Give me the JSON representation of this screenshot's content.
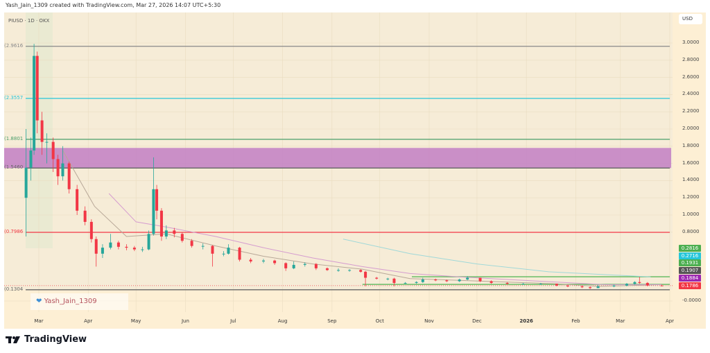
{
  "caption": "Yash_Jain_1309 created with TradingView.com, Mar 27, 2026 14:07 UTC+5:30",
  "symbol_line": "PIUSD · 1D · OKX",
  "currency_button": "USD",
  "watermark": "Yash_Jain_1309",
  "watermark_icon": "heart-icon",
  "brand": "TradingView",
  "colors": {
    "up": "#26a69a",
    "down": "#f23645",
    "zone": "#c27fc4",
    "background": "#fdefd4"
  },
  "level_labels": [
    {
      "text": "2.9616)",
      "price": 2.9616,
      "color": "#888888"
    },
    {
      "text": "2.3557)",
      "price": 2.3557,
      "color": "#26c6da"
    },
    {
      "text": "1.8801)",
      "price": 1.8801,
      "color": "#4a9e6a"
    },
    {
      "text": "1.5460)",
      "price": 1.546,
      "color": "#666666"
    },
    {
      "text": "0.7986)",
      "price": 0.7986,
      "color": "#f23645"
    },
    {
      "text": "0.1304)",
      "price": 0.1304,
      "color": "#666666"
    }
  ],
  "price_badges": [
    {
      "text": "0.2816",
      "color": "#4caf50"
    },
    {
      "text": "0.2716",
      "color": "#26c6da"
    },
    {
      "text": "0.1931",
      "color": "#4caf50"
    },
    {
      "text": "0.1907",
      "color": "#555555"
    },
    {
      "text": "0.1884",
      "color": "#9c27b0"
    },
    {
      "text": "0.1786",
      "color": "#f23645"
    }
  ],
  "chart_data": {
    "type": "candlestick",
    "xlabels": [
      "Mar",
      "Apr",
      "May",
      "Jun",
      "Jul",
      "Aug",
      "Sep",
      "Oct",
      "Nov",
      "Dec",
      "2026",
      "Feb",
      "Mar",
      "Apr"
    ],
    "xlabel_dates": [
      "2025-03-01",
      "2025-04-01",
      "2025-05-01",
      "2025-06-01",
      "2025-07-01",
      "2025-08-01",
      "2025-09-01",
      "2025-10-01",
      "2025-11-01",
      "2025-12-01",
      "2026-01-01",
      "2026-02-01",
      "2026-03-01",
      "2026-04-01"
    ],
    "yticks": [
      "3.0000",
      "2.8000",
      "2.6000",
      "2.4000",
      "2.2000",
      "2.0000",
      "1.8000",
      "1.6000",
      "1.4000",
      "1.2000",
      "1.0000",
      "0.8000",
      "-0.0000"
    ],
    "ytick_values": [
      3.0,
      2.8,
      2.6,
      2.4,
      2.2,
      2.0,
      1.8,
      1.6,
      1.4,
      1.2,
      1.0,
      0.8,
      0.0
    ],
    "ylim": [
      -0.05,
      3.1
    ],
    "horizontal_levels": [
      2.9616,
      2.3557,
      1.8801,
      1.546,
      0.7986,
      0.1304
    ],
    "zone": {
      "low": 1.546,
      "high": 1.78
    },
    "support_lines": [
      {
        "price": 0.2816,
        "from": "2025-11-01"
      },
      {
        "price": 0.1931,
        "from": "2025-10-01"
      }
    ],
    "last_price": 0.1786,
    "ohlc": [
      [
        "2025-02-21",
        1.2,
        2.0,
        0.75,
        1.55
      ],
      [
        "2025-02-24",
        1.55,
        1.9,
        1.4,
        1.75
      ],
      [
        "2025-02-26",
        1.75,
        2.99,
        1.7,
        2.85
      ],
      [
        "2025-02-28",
        2.85,
        2.9,
        1.95,
        2.1
      ],
      [
        "2025-03-03",
        2.1,
        2.2,
        1.7,
        1.85
      ],
      [
        "2025-03-06",
        1.85,
        1.95,
        1.6,
        1.85
      ],
      [
        "2025-03-10",
        1.85,
        1.9,
        1.5,
        1.65
      ],
      [
        "2025-03-13",
        1.65,
        1.7,
        1.35,
        1.45
      ],
      [
        "2025-03-16",
        1.45,
        1.8,
        1.4,
        1.6
      ],
      [
        "2025-03-20",
        1.6,
        1.62,
        1.25,
        1.3
      ],
      [
        "2025-03-25",
        1.3,
        1.35,
        1.0,
        1.05
      ],
      [
        "2025-03-30",
        1.05,
        1.1,
        0.88,
        0.92
      ],
      [
        "2025-04-03",
        0.92,
        0.95,
        0.68,
        0.72
      ],
      [
        "2025-04-06",
        0.72,
        0.75,
        0.4,
        0.55
      ],
      [
        "2025-04-10",
        0.55,
        0.66,
        0.5,
        0.62
      ],
      [
        "2025-04-15",
        0.62,
        0.78,
        0.6,
        0.68
      ],
      [
        "2025-04-20",
        0.68,
        0.7,
        0.6,
        0.63
      ],
      [
        "2025-04-25",
        0.63,
        0.66,
        0.59,
        0.62
      ],
      [
        "2025-04-30",
        0.62,
        0.64,
        0.58,
        0.6
      ],
      [
        "2025-05-05",
        0.6,
        0.63,
        0.57,
        0.6
      ],
      [
        "2025-05-09",
        0.6,
        0.82,
        0.59,
        0.78
      ],
      [
        "2025-05-12",
        0.78,
        1.67,
        0.76,
        1.3
      ],
      [
        "2025-05-14",
        1.3,
        1.35,
        0.95,
        1.05
      ],
      [
        "2025-05-17",
        1.05,
        1.08,
        0.7,
        0.75
      ],
      [
        "2025-05-20",
        0.75,
        0.88,
        0.72,
        0.82
      ],
      [
        "2025-05-25",
        0.82,
        0.85,
        0.74,
        0.78
      ],
      [
        "2025-05-30",
        0.78,
        0.8,
        0.68,
        0.7
      ],
      [
        "2025-06-05",
        0.7,
        0.72,
        0.62,
        0.64
      ],
      [
        "2025-06-12",
        0.64,
        0.67,
        0.6,
        0.64
      ],
      [
        "2025-06-18",
        0.64,
        0.65,
        0.4,
        0.55
      ],
      [
        "2025-06-25",
        0.55,
        0.58,
        0.52,
        0.55
      ],
      [
        "2025-06-28",
        0.55,
        0.66,
        0.54,
        0.62
      ],
      [
        "2025-07-05",
        0.62,
        0.63,
        0.46,
        0.48
      ],
      [
        "2025-07-12",
        0.48,
        0.5,
        0.44,
        0.46
      ],
      [
        "2025-07-20",
        0.46,
        0.49,
        0.44,
        0.47
      ],
      [
        "2025-07-27",
        0.47,
        0.48,
        0.42,
        0.44
      ],
      [
        "2025-08-03",
        0.44,
        0.45,
        0.35,
        0.38
      ],
      [
        "2025-08-08",
        0.38,
        0.46,
        0.37,
        0.42
      ],
      [
        "2025-08-15",
        0.42,
        0.45,
        0.4,
        0.43
      ],
      [
        "2025-08-22",
        0.43,
        0.44,
        0.36,
        0.38
      ],
      [
        "2025-08-29",
        0.38,
        0.39,
        0.35,
        0.36
      ],
      [
        "2025-09-05",
        0.36,
        0.38,
        0.34,
        0.36
      ],
      [
        "2025-09-12",
        0.36,
        0.37,
        0.34,
        0.36
      ],
      [
        "2025-09-19",
        0.36,
        0.37,
        0.33,
        0.34
      ],
      [
        "2025-09-22",
        0.34,
        0.35,
        0.17,
        0.27
      ],
      [
        "2025-09-29",
        0.27,
        0.28,
        0.25,
        0.26
      ],
      [
        "2025-10-06",
        0.26,
        0.27,
        0.24,
        0.26
      ],
      [
        "2025-10-10",
        0.26,
        0.27,
        0.17,
        0.21
      ],
      [
        "2025-10-17",
        0.21,
        0.22,
        0.2,
        0.21
      ],
      [
        "2025-10-24",
        0.21,
        0.23,
        0.2,
        0.22
      ],
      [
        "2025-10-28",
        0.22,
        0.27,
        0.21,
        0.25
      ],
      [
        "2025-11-05",
        0.25,
        0.26,
        0.23,
        0.24
      ],
      [
        "2025-11-12",
        0.24,
        0.25,
        0.22,
        0.23
      ],
      [
        "2025-11-20",
        0.23,
        0.26,
        0.22,
        0.25
      ],
      [
        "2025-11-25",
        0.25,
        0.29,
        0.24,
        0.27
      ],
      [
        "2025-12-03",
        0.27,
        0.27,
        0.22,
        0.23
      ],
      [
        "2025-12-10",
        0.23,
        0.24,
        0.2,
        0.21
      ],
      [
        "2025-12-20",
        0.21,
        0.22,
        0.19,
        0.2
      ],
      [
        "2025-12-30",
        0.2,
        0.21,
        0.19,
        0.2
      ],
      [
        "2026-01-10",
        0.2,
        0.21,
        0.19,
        0.2
      ],
      [
        "2026-01-20",
        0.2,
        0.2,
        0.17,
        0.18
      ],
      [
        "2026-01-27",
        0.18,
        0.19,
        0.16,
        0.17
      ],
      [
        "2026-02-05",
        0.17,
        0.18,
        0.15,
        0.16
      ],
      [
        "2026-02-10",
        0.16,
        0.17,
        0.14,
        0.15
      ],
      [
        "2026-02-15",
        0.15,
        0.19,
        0.15,
        0.17
      ],
      [
        "2026-02-25",
        0.17,
        0.19,
        0.16,
        0.18
      ],
      [
        "2026-03-05",
        0.18,
        0.21,
        0.17,
        0.2
      ],
      [
        "2026-03-10",
        0.2,
        0.23,
        0.19,
        0.22
      ],
      [
        "2026-03-13",
        0.22,
        0.28,
        0.2,
        0.21
      ],
      [
        "2026-03-18",
        0.21,
        0.22,
        0.17,
        0.18
      ],
      [
        "2026-03-27",
        0.18,
        0.19,
        0.17,
        0.1786
      ]
    ],
    "moving_averages": [
      {
        "color": "#b8a898",
        "points": [
          [
            "2025-03-16",
            1.75
          ],
          [
            "2025-04-05",
            1.1
          ],
          [
            "2025-04-25",
            0.75
          ],
          [
            "2025-05-20",
            0.78
          ],
          [
            "2025-06-20",
            0.64
          ],
          [
            "2025-07-20",
            0.52
          ],
          [
            "2025-08-20",
            0.43
          ],
          [
            "2025-09-20",
            0.37
          ],
          [
            "2025-10-20",
            0.26
          ],
          [
            "2025-11-20",
            0.24
          ],
          [
            "2025-12-20",
            0.22
          ],
          [
            "2026-01-20",
            0.2
          ],
          [
            "2026-02-15",
            0.17
          ],
          [
            "2026-03-27",
            0.19
          ]
        ]
      },
      {
        "color": "#d59ccf",
        "points": [
          [
            "2025-04-14",
            1.25
          ],
          [
            "2025-05-01",
            0.92
          ],
          [
            "2025-05-20",
            0.86
          ],
          [
            "2025-06-20",
            0.75
          ],
          [
            "2025-07-20",
            0.62
          ],
          [
            "2025-08-20",
            0.5
          ],
          [
            "2025-09-20",
            0.4
          ],
          [
            "2025-10-20",
            0.32
          ],
          [
            "2025-11-20",
            0.28
          ],
          [
            "2025-12-20",
            0.25
          ],
          [
            "2026-01-20",
            0.22
          ],
          [
            "2026-02-20",
            0.19
          ],
          [
            "2026-03-27",
            0.19
          ]
        ]
      },
      {
        "color": "#9fd8d8",
        "points": [
          [
            "2025-09-08",
            0.72
          ],
          [
            "2025-10-20",
            0.55
          ],
          [
            "2025-12-01",
            0.43
          ],
          [
            "2026-01-15",
            0.34
          ],
          [
            "2026-03-20",
            0.28
          ]
        ]
      }
    ]
  }
}
